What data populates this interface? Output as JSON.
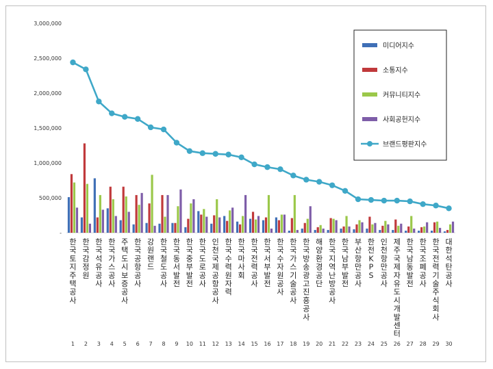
{
  "chart_data": {
    "type": "bar",
    "ylim": [
      0,
      3000000
    ],
    "yticks": [
      "-",
      "500,000",
      "1,000,000",
      "1,500,000",
      "2,000,000",
      "2,500,000",
      "3,000,000"
    ],
    "legend_position": "top-right",
    "grid": false,
    "categories": [
      "한국토지주택공사",
      "한국감정원",
      "한국석유공사",
      "한국가스공사",
      "주택도시보증공사",
      "한국공항공사",
      "강원랜드",
      "한국철도공사",
      "한국동서발전",
      "한국중부발전",
      "한국도로공사",
      "인천국제공항공사",
      "한국수력원자력",
      "한국마사회",
      "한국전력공사",
      "한국서부발전",
      "한국수자원공사",
      "한국가스기술공사",
      "한국방송광고진흥공사",
      "해양환경공단",
      "한국지역난방공사",
      "한국남부발전",
      "부산항만공사",
      "한전KPS",
      "인천항만공사",
      "제주국제자유도시개발센터",
      "한국남동발전",
      "한국조폐공사",
      "한국전력기술주식회사",
      "대한석탄공사"
    ],
    "indices": [
      "1",
      "2",
      "3",
      "4",
      "5",
      "6",
      "7",
      "8",
      "9",
      "10",
      "11",
      "12",
      "13",
      "14",
      "15",
      "16",
      "17",
      "18",
      "19",
      "20",
      "21",
      "22",
      "23",
      "24",
      "25",
      "26",
      "27",
      "28",
      "29",
      "30"
    ],
    "series": [
      {
        "name": "미디어지수",
        "color": "#3f6fb6",
        "kind": "bar",
        "values": [
          510000,
          220000,
          780000,
          350000,
          180000,
          120000,
          140000,
          130000,
          140000,
          80000,
          310000,
          130000,
          240000,
          160000,
          200000,
          180000,
          220000,
          30000,
          60000,
          40000,
          40000,
          60000,
          50000,
          60000,
          40000,
          40000,
          30000,
          30000,
          30000,
          20000
        ]
      },
      {
        "name": "소통지수",
        "color": "#c0393b",
        "kind": "bar",
        "values": [
          840000,
          1280000,
          220000,
          660000,
          660000,
          540000,
          420000,
          540000,
          140000,
          200000,
          260000,
          250000,
          170000,
          120000,
          300000,
          220000,
          180000,
          210000,
          140000,
          80000,
          210000,
          90000,
          120000,
          230000,
          100000,
          190000,
          90000,
          80000,
          150000,
          40000
        ]
      },
      {
        "name": "커뮤니티지수",
        "color": "#9bc84a",
        "kind": "bar",
        "values": [
          720000,
          700000,
          540000,
          480000,
          520000,
          400000,
          830000,
          230000,
          380000,
          420000,
          340000,
          480000,
          320000,
          240000,
          190000,
          540000,
          260000,
          540000,
          200000,
          110000,
          200000,
          240000,
          180000,
          120000,
          170000,
          100000,
          240000,
          90000,
          160000,
          120000
        ]
      },
      {
        "name": "사회공헌지수",
        "color": "#7e5da8",
        "kind": "bar",
        "values": [
          360000,
          130000,
          330000,
          240000,
          300000,
          570000,
          100000,
          540000,
          620000,
          480000,
          230000,
          220000,
          360000,
          540000,
          240000,
          60000,
          260000,
          40000,
          380000,
          60000,
          180000,
          90000,
          150000,
          140000,
          120000,
          130000,
          60000,
          150000,
          70000,
          160000
        ]
      },
      {
        "name": "브랜드평판지수",
        "color": "#3fa8c8",
        "kind": "line",
        "values": [
          2440000,
          2340000,
          1880000,
          1710000,
          1660000,
          1630000,
          1510000,
          1480000,
          1290000,
          1170000,
          1140000,
          1130000,
          1120000,
          1080000,
          980000,
          940000,
          910000,
          820000,
          760000,
          730000,
          680000,
          600000,
          480000,
          470000,
          460000,
          460000,
          450000,
          410000,
          390000,
          350000
        ]
      }
    ]
  }
}
